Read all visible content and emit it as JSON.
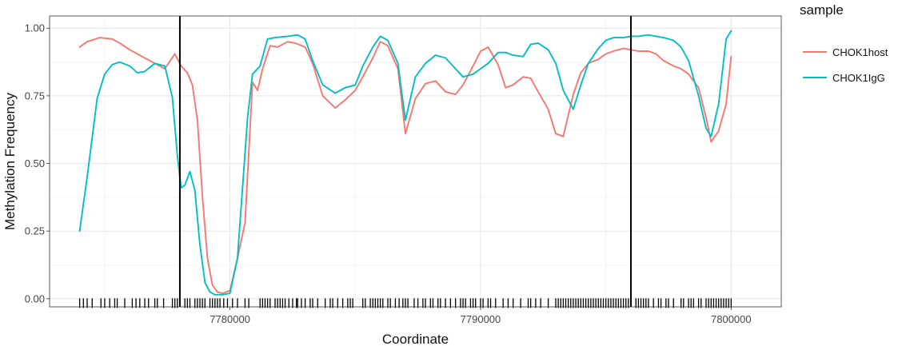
{
  "chart_data": {
    "type": "line",
    "title": "",
    "xlabel": "Coordinate",
    "ylabel": "Methylation Frequency",
    "xlim": [
      7772800,
      7802000
    ],
    "ylim": [
      -0.03,
      1.045
    ],
    "grid": true,
    "x_ticks": [
      7780000,
      7790000,
      7800000
    ],
    "x_tick_labels": [
      "7780000",
      "7790000",
      "7800000"
    ],
    "y_ticks": [
      0.0,
      0.25,
      0.5,
      0.75,
      1.0
    ],
    "y_tick_labels": [
      "0.00",
      "0.25",
      "0.50",
      "0.75",
      "1.00"
    ],
    "vlines": [
      7778000,
      7796000
    ],
    "legend": {
      "title": "sample",
      "placement": "right",
      "entries": [
        {
          "name": "CHOK1host",
          "color": "#f8766d"
        },
        {
          "name": "CHOK1IgG",
          "color": "#00bfc4"
        }
      ]
    },
    "series": [
      {
        "name": "CHOK1host",
        "color": "#f8766d",
        "x": [
          7774000,
          7774300,
          7774800,
          7775300,
          7775600,
          7776000,
          7776500,
          7777000,
          7777400,
          7777800,
          7778050,
          7778300,
          7778500,
          7778700,
          7778900,
          7779100,
          7779300,
          7779500,
          7779700,
          7780000,
          7780300,
          7780600,
          7780900,
          7781100,
          7781300,
          7781600,
          7781900,
          7782300,
          7782600,
          7783000,
          7783300,
          7783700,
          7784200,
          7784600,
          7785000,
          7785300,
          7785700,
          7786000,
          7786300,
          7786700,
          7787000,
          7787400,
          7787800,
          7788200,
          7788600,
          7789000,
          7789300,
          7789700,
          7790000,
          7790300,
          7790700,
          7791000,
          7791300,
          7791700,
          7792000,
          7792300,
          7792700,
          7793000,
          7793300,
          7793700,
          7794000,
          7794300,
          7794700,
          7795000,
          7795300,
          7795700,
          7796000,
          7796300,
          7796700,
          7797000,
          7797300,
          7797700,
          7798000,
          7798300,
          7798700,
          7799000,
          7799200,
          7799500,
          7799800,
          7800000
        ],
        "values": [
          0.93,
          0.95,
          0.965,
          0.96,
          0.945,
          0.92,
          0.895,
          0.87,
          0.85,
          0.905,
          0.86,
          0.835,
          0.79,
          0.66,
          0.38,
          0.15,
          0.05,
          0.025,
          0.02,
          0.03,
          0.15,
          0.28,
          0.8,
          0.77,
          0.85,
          0.935,
          0.93,
          0.95,
          0.945,
          0.93,
          0.87,
          0.75,
          0.705,
          0.735,
          0.77,
          0.82,
          0.89,
          0.95,
          0.935,
          0.85,
          0.61,
          0.74,
          0.795,
          0.805,
          0.765,
          0.755,
          0.79,
          0.86,
          0.915,
          0.93,
          0.865,
          0.78,
          0.79,
          0.82,
          0.815,
          0.765,
          0.7,
          0.61,
          0.6,
          0.755,
          0.835,
          0.87,
          0.885,
          0.905,
          0.915,
          0.925,
          0.92,
          0.915,
          0.915,
          0.905,
          0.88,
          0.86,
          0.85,
          0.83,
          0.78,
          0.67,
          0.58,
          0.62,
          0.72,
          0.895
        ]
      },
      {
        "name": "CHOK1IgG",
        "color": "#00bfc4",
        "x": [
          7774000,
          7774300,
          7774700,
          7775000,
          7775300,
          7775600,
          7776000,
          7776300,
          7776600,
          7777000,
          7777400,
          7777700,
          7777900,
          7778050,
          7778200,
          7778400,
          7778600,
          7778800,
          7779000,
          7779200,
          7779400,
          7779700,
          7780000,
          7780300,
          7780700,
          7780900,
          7781200,
          7781500,
          7781800,
          7782300,
          7782700,
          7783000,
          7783300,
          7783700,
          7784200,
          7784600,
          7785000,
          7785300,
          7785700,
          7786000,
          7786300,
          7786700,
          7787000,
          7787400,
          7787800,
          7788200,
          7788600,
          7789000,
          7789300,
          7789700,
          7790000,
          7790300,
          7790700,
          7791000,
          7791300,
          7791700,
          7792000,
          7792300,
          7792700,
          7793000,
          7793300,
          7793700,
          7794000,
          7794300,
          7794700,
          7795000,
          7795300,
          7795700,
          7796000,
          7796300,
          7796700,
          7797000,
          7797300,
          7797700,
          7798000,
          7798300,
          7798700,
          7799000,
          7799200,
          7799500,
          7799800,
          7800000
        ],
        "values": [
          0.25,
          0.45,
          0.74,
          0.83,
          0.865,
          0.875,
          0.86,
          0.835,
          0.84,
          0.87,
          0.86,
          0.745,
          0.53,
          0.41,
          0.42,
          0.47,
          0.4,
          0.2,
          0.06,
          0.025,
          0.015,
          0.015,
          0.02,
          0.15,
          0.67,
          0.83,
          0.86,
          0.96,
          0.965,
          0.97,
          0.975,
          0.96,
          0.88,
          0.79,
          0.76,
          0.78,
          0.79,
          0.86,
          0.93,
          0.97,
          0.955,
          0.87,
          0.66,
          0.82,
          0.87,
          0.9,
          0.89,
          0.85,
          0.82,
          0.83,
          0.85,
          0.87,
          0.91,
          0.91,
          0.9,
          0.895,
          0.94,
          0.945,
          0.92,
          0.87,
          0.77,
          0.7,
          0.79,
          0.87,
          0.925,
          0.955,
          0.965,
          0.965,
          0.97,
          0.97,
          0.975,
          0.97,
          0.965,
          0.955,
          0.93,
          0.88,
          0.75,
          0.63,
          0.6,
          0.72,
          0.96,
          0.99
        ]
      }
    ],
    "rug_x": [
      7774000,
      7774150,
      7774300,
      7774500,
      7774850,
      7775000,
      7775200,
      7775400,
      7775500,
      7775800,
      7776100,
      7776250,
      7776400,
      7776600,
      7776750,
      7777000,
      7777100,
      7777350,
      7777700,
      7777800,
      7777900,
      7778200,
      7778300,
      7778400,
      7778600,
      7778700,
      7778800,
      7778900,
      7779000,
      7779200,
      7779300,
      7779400,
      7779500,
      7779600,
      7779750,
      7779900,
      7780100,
      7780300,
      7780600,
      7780750,
      7781200,
      7781300,
      7781400,
      7781500,
      7781600,
      7781800,
      7781900,
      7782000,
      7782100,
      7782200,
      7782350,
      7782500,
      7782650,
      7782700,
      7782850,
      7783000,
      7783200,
      7783300,
      7783500,
      7783800,
      7784000,
      7784100,
      7784300,
      7784500,
      7784700,
      7784800,
      7784900,
      7785300,
      7785400,
      7785600,
      7785700,
      7785800,
      7785900,
      7786000,
      7786100,
      7786300,
      7786400,
      7786600,
      7786750,
      7786900,
      7787000,
      7787100,
      7787350,
      7787500,
      7787700,
      7787800,
      7788000,
      7788100,
      7788300,
      7788400,
      7788600,
      7788800,
      7789000,
      7789200,
      7789300,
      7789400,
      7789600,
      7789700,
      7789800,
      7790000,
      7790100,
      7790300,
      7790400,
      7790600,
      7790900,
      7791100,
      7791300,
      7791600,
      7791900,
      7792000,
      7792200,
      7792400,
      7792700,
      7793000,
      7793100,
      7793200,
      7793300,
      7793400,
      7793500,
      7793600,
      7793700,
      7793800,
      7793900,
      7794000,
      7794100,
      7794200,
      7794300,
      7794400,
      7794500,
      7794600,
      7794700,
      7794800,
      7794900,
      7795000,
      7795100,
      7795200,
      7795300,
      7795400,
      7795500,
      7795600,
      7795700,
      7795800,
      7795900,
      7796200,
      7796300,
      7796400,
      7796500,
      7796600,
      7796700,
      7796900,
      7797100,
      7797200,
      7797400,
      7797500,
      7797700,
      7798000,
      7798100,
      7798300,
      7798400,
      7798500,
      7798700,
      7798800,
      7799000,
      7799100,
      7799200,
      7799300,
      7799400,
      7799500,
      7799600,
      7799700,
      7799800,
      7799900,
      7800000
    ]
  }
}
